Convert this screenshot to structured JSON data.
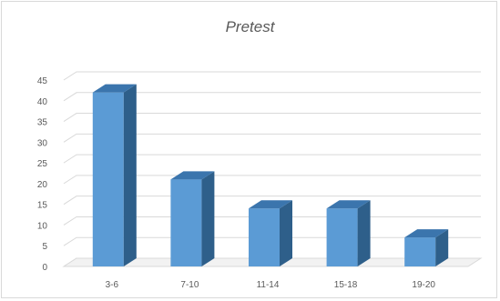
{
  "chart_data": {
    "type": "bar",
    "title": "Pretest",
    "categories": [
      "3-6",
      "7-10",
      "11-14",
      "15-18",
      "19-20"
    ],
    "values": [
      42,
      21,
      14,
      14,
      7
    ],
    "ylim": [
      0,
      45
    ],
    "yticks": [
      0,
      5,
      10,
      15,
      20,
      25,
      30,
      35,
      40,
      45
    ],
    "grid": true,
    "legend": "none",
    "bar_color": "#5b9bd5"
  }
}
